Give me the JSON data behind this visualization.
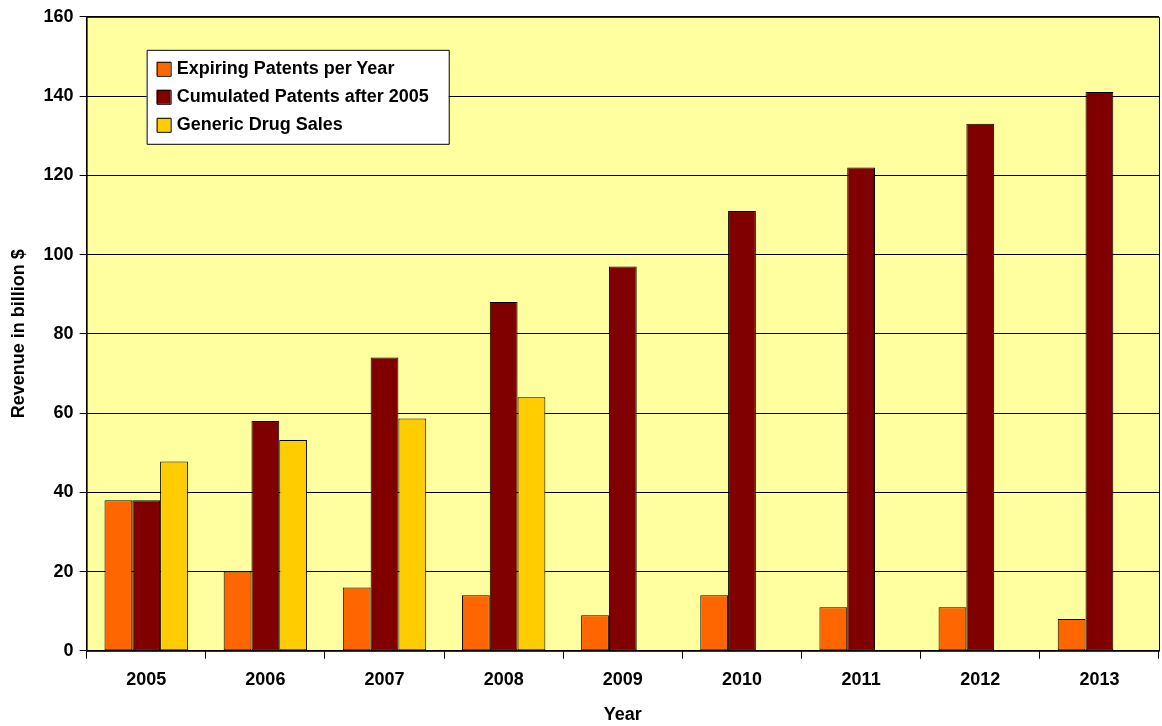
{
  "chart_data": {
    "type": "bar",
    "xlabel": "Year",
    "ylabel": "Revenue in billion $",
    "categories": [
      "2005",
      "2006",
      "2007",
      "2008",
      "2009",
      "2010",
      "2011",
      "2012",
      "2013"
    ],
    "series": [
      {
        "name": "Expiring Patents per Year",
        "color": "#ff6600",
        "values": [
          38,
          20,
          16,
          14,
          9,
          14,
          11,
          11,
          8
        ]
      },
      {
        "name": "Cumulated Patents after 2005",
        "color": "#800000",
        "values": [
          38,
          58,
          74,
          88,
          97,
          111,
          122,
          133,
          141
        ]
      },
      {
        "name": "Generic Drug Sales",
        "color": "#ffcc00",
        "values": [
          47.8,
          53.2,
          58.6,
          64,
          null,
          null,
          null,
          null,
          null
        ]
      }
    ],
    "ylim": [
      0,
      160
    ],
    "yticks": [
      0,
      20,
      40,
      60,
      80,
      100,
      120,
      140,
      160
    ],
    "grid": "y",
    "legend": "top left"
  }
}
